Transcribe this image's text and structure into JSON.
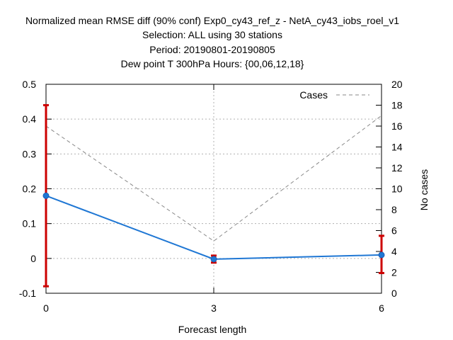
{
  "chart_data": {
    "type": "line",
    "title_lines": [
      "Normalized mean RMSE diff (90% conf) Exp0_cy43_ref_z - NetA_cy43_iobs_roel_v1",
      "Selection: ALL using    30 stations",
      "Period: 20190801-20190805",
      "Dew point T 300hPa   Hours: {00,06,12,18}"
    ],
    "xlabel": "Forecast length",
    "ylabel_right": "No cases",
    "x": [
      0,
      3,
      6
    ],
    "xlim": [
      0,
      6
    ],
    "ylim_left": [
      -0.1,
      0.5
    ],
    "ylim_right": [
      0,
      20
    ],
    "x_ticks": [
      "0",
      "3",
      "6"
    ],
    "y_left_ticks": [
      "-0.1",
      "0",
      "0.1",
      "0.2",
      "0.3",
      "0.4",
      "0.5"
    ],
    "y_right_ticks": [
      "0",
      "2",
      "4",
      "6",
      "8",
      "10",
      "12",
      "14",
      "16",
      "18",
      "20"
    ],
    "grid": true,
    "legend_position": "top-right",
    "series": [
      {
        "axis": "left",
        "color": "#1f77d4",
        "style": "solid",
        "marker": "circle",
        "values": [
          0.18,
          -0.002,
          0.01
        ],
        "error_bars": [
          [
            -0.08,
            0.44
          ],
          [
            -0.012,
            0.008
          ],
          [
            -0.042,
            0.065
          ]
        ]
      },
      {
        "name": "Cases",
        "axis": "right",
        "color": "#888888",
        "style": "dashed",
        "values": [
          16,
          5,
          17
        ]
      }
    ],
    "error_bar_color": "#cc0000"
  }
}
